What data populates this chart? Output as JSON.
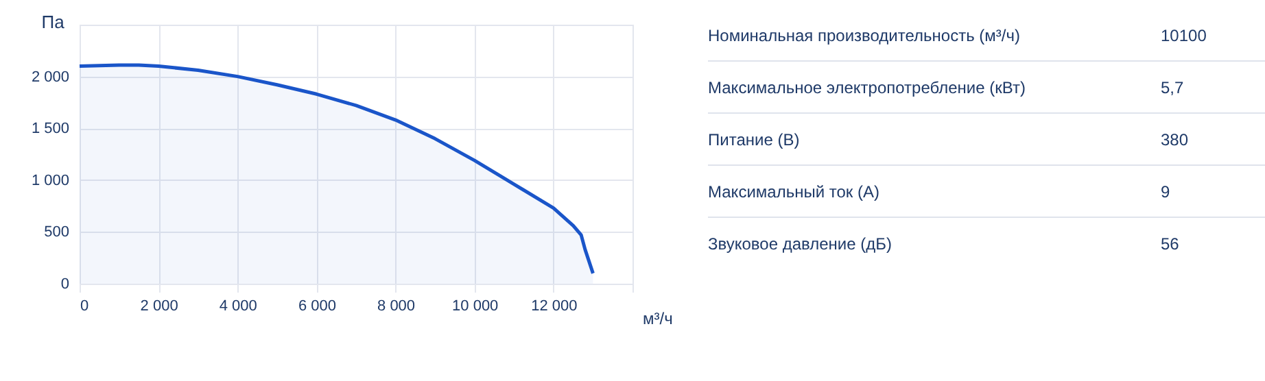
{
  "chart_data": [
    {
      "type": "area",
      "xlabel": "м³/ч",
      "ylabel": "Па",
      "x": [
        0,
        1000,
        1500,
        2000,
        3000,
        4000,
        5000,
        6000,
        7000,
        8000,
        9000,
        10000,
        11000,
        12000,
        12500,
        12700,
        12800,
        13000
      ],
      "series": [
        {
          "color": "#1a55c9",
          "values": [
            2100,
            2110,
            2110,
            2100,
            2060,
            2000,
            1920,
            1830,
            1720,
            1580,
            1400,
            1190,
            960,
            730,
            560,
            470,
            330,
            100
          ]
        }
      ],
      "xlim": [
        0,
        14000
      ],
      "xticks": [
        0,
        {
          "value": 2000,
          "label": "2 000"
        },
        {
          "value": 4000,
          "label": "4 000"
        },
        {
          "value": 6000,
          "label": "6 000"
        },
        {
          "value": 8000,
          "label": "8 000"
        },
        {
          "value": 10000,
          "label": "10 000"
        },
        {
          "value": 12000,
          "label": "12 000"
        },
        {
          "value": 14000,
          "label": null
        }
      ],
      "ylim": [
        0,
        2500
      ],
      "yticks": [
        0,
        500,
        {
          "value": 1000,
          "label": "1 000"
        },
        {
          "value": 1500,
          "label": "1 500"
        },
        {
          "value": 2000,
          "label": "2 000"
        },
        {
          "value": 2500,
          "label": null
        }
      ],
      "grid": true
    },
    {
      "type": "other",
      "annotations": [
        "Номинальная производительность (м³/ч)",
        "10100",
        "Максимальное электропотребление (кВт)",
        "5,7",
        "Питание (В)",
        "380",
        "Максимальный ток (А)",
        "9",
        "Звуковое давление (дБ)",
        "56"
      ]
    }
  ]
}
